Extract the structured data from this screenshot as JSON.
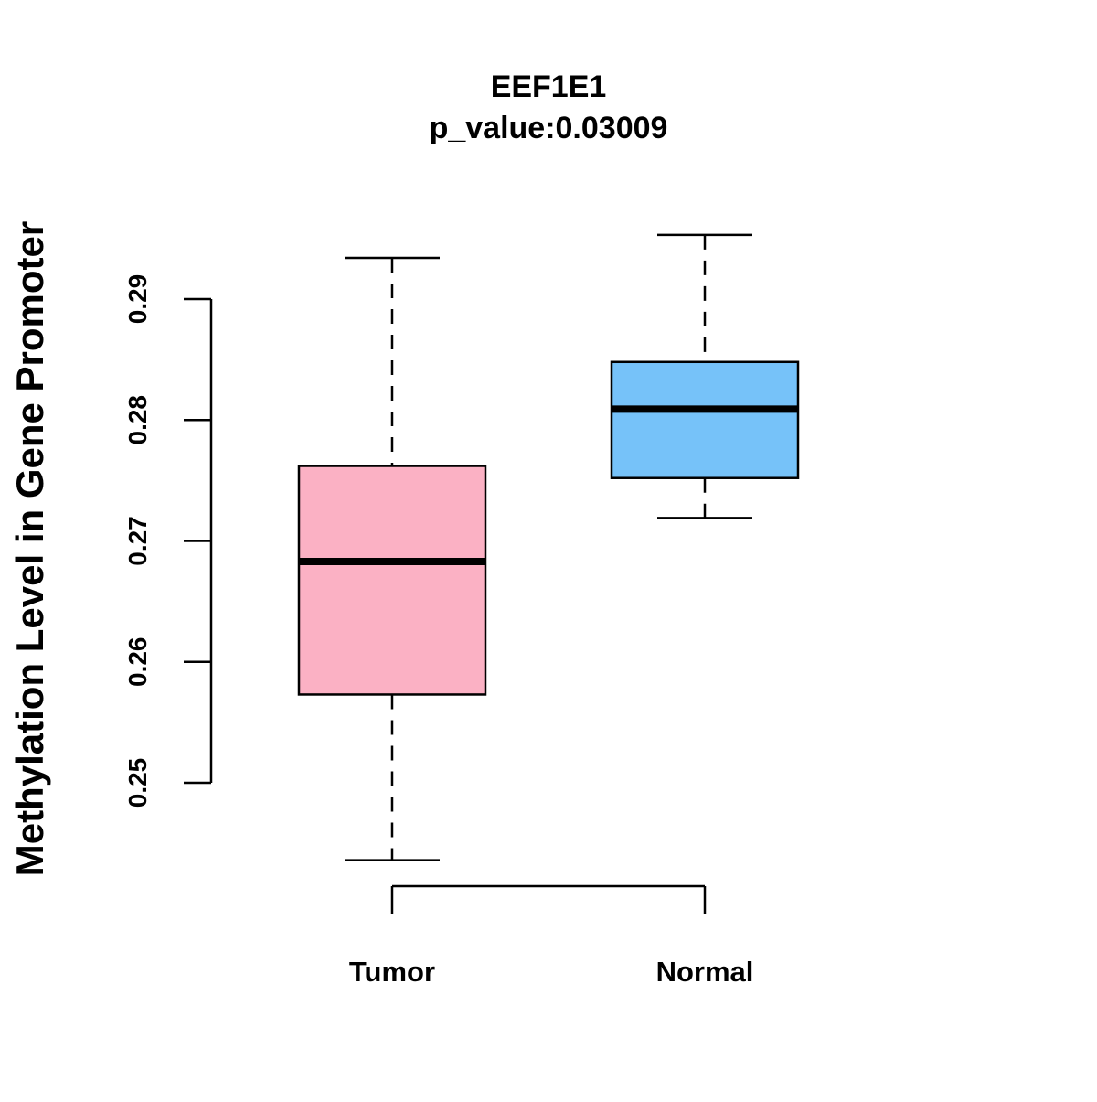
{
  "chart_data": {
    "type": "boxplot",
    "title": "EEF1E1",
    "subtitle": "p_value:0.03009",
    "xlabel": "",
    "ylabel": "Methylation Level in Gene Promoter",
    "ylim": [
      0.2436,
      0.2953
    ],
    "yticks": [
      0.25,
      0.26,
      0.27,
      0.28,
      0.29
    ],
    "ytick_labels": [
      "0.25",
      "0.26",
      "0.27",
      "0.28",
      "0.29"
    ],
    "categories": [
      "Tumor",
      "Normal"
    ],
    "boxes": [
      {
        "name": "Tumor",
        "whisker_low": 0.2436,
        "q1": 0.2573,
        "median": 0.2683,
        "q3": 0.2762,
        "whisker_high": 0.2934,
        "color": "#FBB1C4"
      },
      {
        "name": "Normal",
        "whisker_low": 0.2719,
        "q1": 0.2752,
        "median": 0.2809,
        "q3": 0.2848,
        "whisker_high": 0.2953,
        "color": "#76C2F9"
      }
    ],
    "grid": false
  }
}
